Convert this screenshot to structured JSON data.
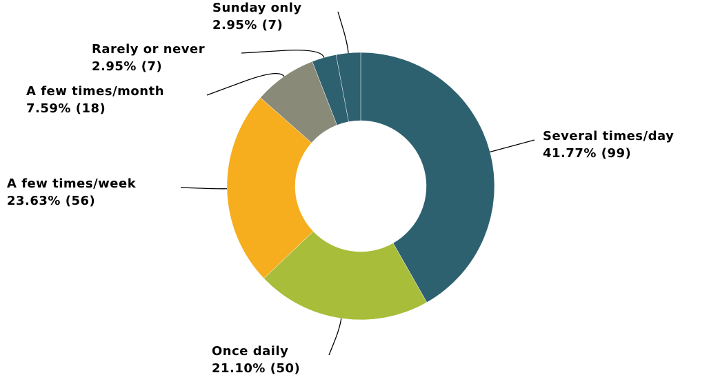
{
  "chart_data": {
    "type": "donut",
    "categories": [
      "Several times/day",
      "Once daily",
      "A few times/week",
      "A few times/month",
      "Rarely or never",
      "Sunday only"
    ],
    "values": [
      41.77,
      21.1,
      23.63,
      7.59,
      2.95,
      2.95
    ],
    "value_labels": [
      "41.77% (99)",
      "21.10% (50)",
      "23.63% (56)",
      "7.59% (18)",
      "2.95% (7)",
      "2.95% (7)"
    ],
    "colors": [
      "#2e6170",
      "#a8bd3a",
      "#f6ae1f",
      "#8a8a78",
      "#2e6170",
      "#2e6170"
    ]
  }
}
